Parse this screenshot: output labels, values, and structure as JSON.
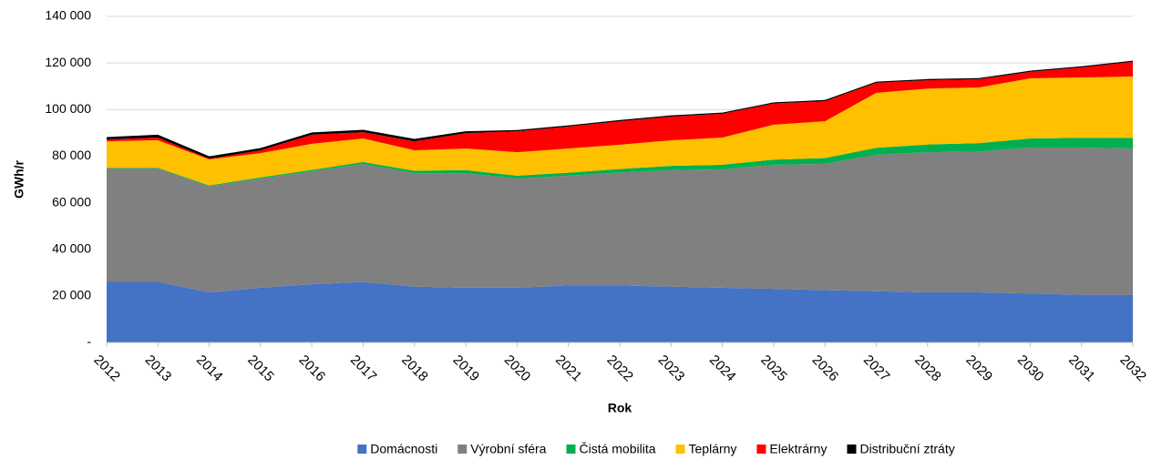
{
  "chart_data": {
    "type": "stacked_area",
    "ylabel": "GWh/r",
    "xlabel": "Rok",
    "categories": [
      "2012",
      "2013",
      "2014",
      "2015",
      "2016",
      "2017",
      "2018",
      "2019",
      "2020",
      "2021",
      "2022",
      "2023",
      "2024",
      "2025",
      "2026",
      "2027",
      "2028",
      "2029",
      "2030",
      "2031",
      "2032"
    ],
    "ylim": [
      0,
      140000
    ],
    "yticks": [
      {
        "value": 0,
        "label": "-"
      },
      {
        "value": 20000,
        "label": "20 000"
      },
      {
        "value": 40000,
        "label": "40 000"
      },
      {
        "value": 60000,
        "label": "60 000"
      },
      {
        "value": 80000,
        "label": "80 000"
      },
      {
        "value": 100000,
        "label": "100 000"
      },
      {
        "value": 120000,
        "label": "120 000"
      },
      {
        "value": 140000,
        "label": "140 000"
      }
    ],
    "grid": true,
    "legend": "bottom",
    "series": [
      {
        "name": "Domácnosti",
        "color": "#4472c4",
        "values": [
          26000,
          26000,
          21500,
          23500,
          25000,
          26000,
          24000,
          23500,
          23500,
          24500,
          24500,
          24000,
          23500,
          23000,
          22500,
          22000,
          21500,
          21500,
          21000,
          20500,
          20500
        ]
      },
      {
        "name": "Výrobní sféra",
        "color": "#808080",
        "values": [
          48700,
          48700,
          45500,
          46900,
          48500,
          50700,
          48700,
          49200,
          46900,
          47100,
          48500,
          50000,
          50800,
          53300,
          54200,
          58600,
          60200,
          60500,
          62700,
          63200,
          62800
        ]
      },
      {
        "name": "Čistá mobilita",
        "color": "#00b050",
        "values": [
          200,
          300,
          400,
          500,
          600,
          800,
          1000,
          1300,
          1200,
          1300,
          1500,
          1800,
          2000,
          2200,
          2500,
          3000,
          3300,
          3600,
          3900,
          4200,
          4500
        ]
      },
      {
        "name": "Teplárny",
        "color": "#ffc000",
        "values": [
          11500,
          11800,
          11200,
          10400,
          11200,
          10100,
          8800,
          9300,
          10100,
          10400,
          10400,
          11000,
          11700,
          15000,
          15800,
          23600,
          24000,
          23900,
          25800,
          25900,
          26400
        ]
      },
      {
        "name": "Elektrárny",
        "color": "#ff0000",
        "values": [
          800,
          1200,
          300,
          1200,
          3900,
          2700,
          3900,
          6600,
          9000,
          9400,
          10100,
          10200,
          10200,
          9100,
          8600,
          4300,
          3600,
          3500,
          2800,
          4300,
          6300
        ]
      },
      {
        "name": "Distribuční ztráty",
        "color": "#000000",
        "values": [
          1000,
          1200,
          1000,
          1000,
          1000,
          1000,
          1000,
          800,
          500,
          500,
          500,
          500,
          500,
          500,
          500,
          500,
          500,
          500,
          500,
          500,
          500
        ]
      }
    ]
  }
}
